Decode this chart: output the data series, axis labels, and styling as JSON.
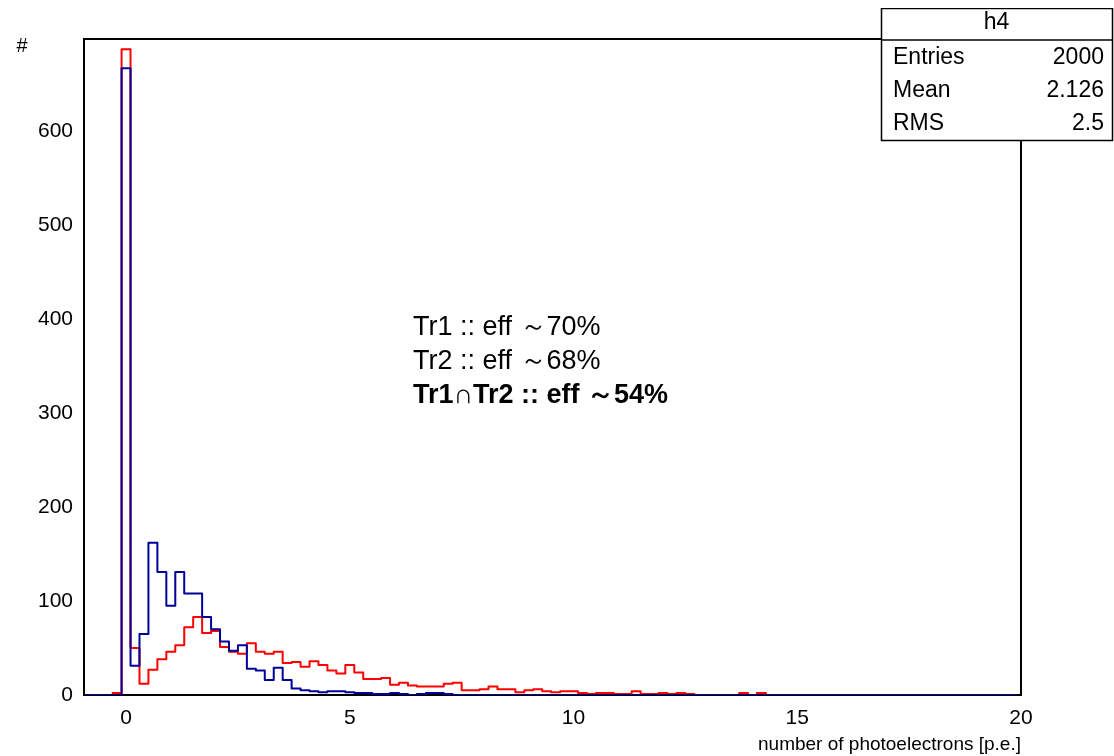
{
  "chart_data": {
    "type": "histogram",
    "xlabel": "number of photoelectrons [p.e.]",
    "ylabel": "#",
    "bins": [
      -0.9,
      -0.7,
      -0.5,
      -0.3,
      -0.1,
      0.1,
      0.3,
      0.5,
      0.7,
      0.9,
      1.1,
      1.3,
      1.5,
      1.7,
      1.9,
      2.1,
      2.3,
      2.5,
      2.7,
      2.9,
      3.1,
      3.3,
      3.5,
      3.7,
      3.9,
      4.1,
      4.3,
      4.5,
      4.7,
      4.9,
      5.1,
      5.3,
      5.5,
      5.7,
      5.9,
      6.1,
      6.3,
      6.5,
      6.7,
      6.9,
      7.1,
      7.3,
      7.5,
      7.7,
      7.9,
      8.1,
      8.3,
      8.5,
      8.7,
      8.9,
      9.1,
      9.3,
      9.5,
      9.7,
      9.9,
      10.1,
      10.3,
      10.5,
      10.7,
      10.9,
      11.1,
      11.3,
      11.5,
      11.7,
      11.9,
      12.1,
      12.3,
      12.5,
      12.7,
      12.9,
      13.1,
      13.3,
      13.5,
      13.7,
      13.9,
      14.1,
      14.3,
      14.5,
      14.7,
      14.9,
      15.1,
      15.3,
      15.5,
      15.7,
      15.9,
      16.1,
      16.3,
      16.5,
      16.7,
      16.9,
      17.1,
      17.3,
      17.5,
      17.7,
      17.9,
      18.1,
      18.3,
      18.5,
      18.7,
      18.9,
      19.1,
      19.3,
      19.5,
      19.7,
      19.9
    ],
    "series": [
      {
        "color": "#000099",
        "values": [
          0,
          0,
          0,
          0,
          667,
          31,
          65,
          162,
          131,
          95,
          131,
          108,
          108,
          83,
          70,
          57,
          47,
          53,
          28,
          26,
          16,
          29,
          16,
          7,
          5,
          4,
          3,
          4,
          4,
          3,
          2,
          2,
          1,
          1,
          2,
          1,
          0,
          1,
          2,
          2,
          1,
          0,
          0,
          0,
          0,
          0,
          0,
          0,
          0,
          0,
          0,
          0,
          0,
          0,
          0,
          0,
          0,
          0,
          0,
          0,
          0,
          0,
          0,
          0,
          0,
          0,
          0,
          0,
          0,
          0,
          0,
          0,
          0,
          0,
          0,
          0,
          0,
          0,
          0,
          0,
          0,
          0,
          0,
          0,
          0,
          0,
          0,
          0,
          0,
          0,
          0,
          0,
          0,
          0,
          0,
          0,
          0,
          0,
          0,
          0,
          0,
          0,
          0,
          0
        ]
      },
      {
        "color": "#ff0000",
        "values": [
          0,
          0,
          0,
          2,
          687,
          50,
          12,
          27,
          38,
          46,
          53,
          72,
          83,
          66,
          68,
          51,
          46,
          44,
          55,
          46,
          44,
          46,
          34,
          35,
          30,
          36,
          32,
          26,
          23,
          32,
          24,
          17,
          17,
          18,
          11,
          13,
          10,
          9,
          9,
          9,
          12,
          13,
          5,
          5,
          6,
          9,
          6,
          6,
          3,
          5,
          6,
          4,
          3,
          4,
          4,
          2,
          1,
          2,
          2,
          1,
          1,
          4,
          1,
          1,
          2,
          1,
          2,
          1,
          0,
          0,
          0,
          0,
          0,
          2,
          0,
          2,
          0,
          0,
          0,
          0,
          0,
          0,
          0,
          0,
          0,
          0,
          0,
          0,
          0,
          0,
          0,
          0,
          0,
          0,
          0,
          0,
          0,
          0,
          0,
          0,
          0,
          0,
          0,
          0
        ]
      }
    ],
    "xlim": [
      -0.94,
      20
    ],
    "xticks": [
      0,
      5,
      10,
      15,
      20
    ],
    "ylim": [
      0,
      698
    ],
    "yticks": [
      0,
      100,
      200,
      300,
      400,
      500,
      600
    ],
    "grid": false,
    "legend": false,
    "annotations": [
      "h4",
      "Entries",
      "2000",
      "Mean",
      "2.126",
      "RMS",
      "2.5",
      "Tr1 :: eff ～70%",
      "Tr2 :: eff ～68%",
      "Tr1∩Tr2 :: eff ～54%"
    ]
  }
}
